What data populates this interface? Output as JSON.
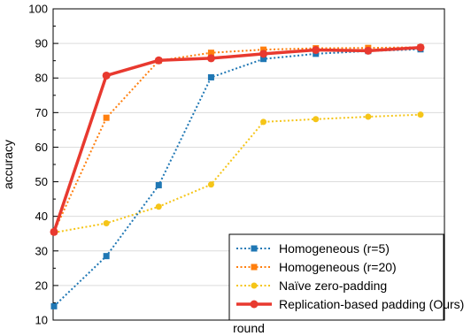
{
  "chart_data": {
    "type": "line",
    "title": "",
    "xlabel": "round",
    "ylabel": "accuracy",
    "x": [
      1,
      2,
      3,
      4,
      5,
      6,
      7,
      8
    ],
    "ylim": [
      10,
      100
    ],
    "yticks": [
      10,
      20,
      30,
      40,
      50,
      60,
      70,
      80,
      90,
      100
    ],
    "grid": true,
    "legend_position": "bottom-right",
    "series": [
      {
        "name": "Homogeneous (r=5)",
        "color": "#1f77b4",
        "style": "dotted",
        "marker": "square",
        "values": [
          14.0,
          28.5,
          49.0,
          80.2,
          85.5,
          87.0,
          87.8,
          88.3
        ]
      },
      {
        "name": "Homogeneous (r=20)",
        "color": "#ff7f0e",
        "style": "dotted",
        "marker": "square",
        "values": [
          35.5,
          68.5,
          85.0,
          87.3,
          88.2,
          88.6,
          88.7,
          88.9
        ]
      },
      {
        "name": "Naïve zero-padding",
        "color": "#f5c518",
        "style": "dotted",
        "marker": "circle",
        "values": [
          35.3,
          38.0,
          42.8,
          49.2,
          67.3,
          68.1,
          68.8,
          69.4
        ]
      },
      {
        "name": "Replication-based padding (Ours)",
        "color": "#e8392f",
        "style": "solid",
        "marker": "circle",
        "values": [
          35.5,
          80.7,
          85.1,
          85.7,
          87.0,
          88.1,
          87.9,
          88.8
        ]
      }
    ]
  }
}
